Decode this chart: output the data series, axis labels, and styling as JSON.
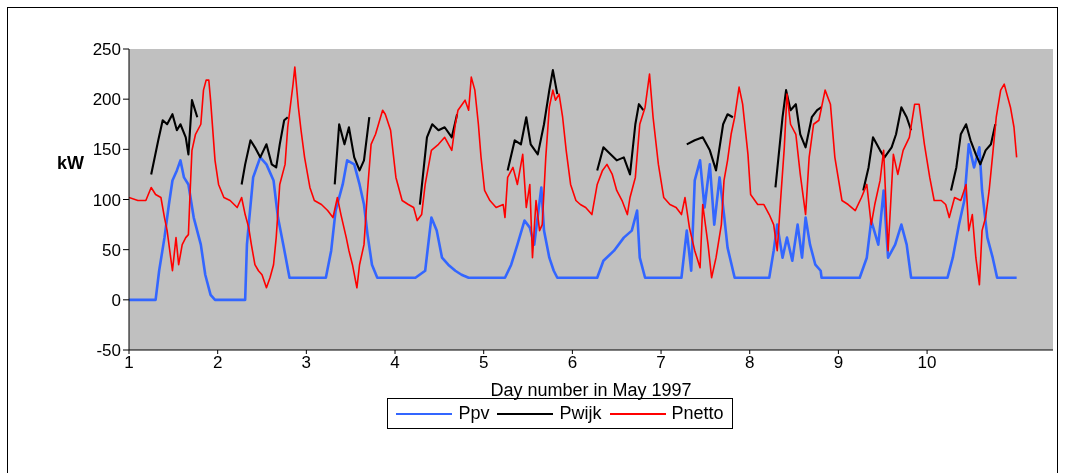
{
  "chart_data": {
    "type": "line",
    "xlabel": "Day number in May 1997",
    "ylabel": "kW",
    "xlim": [
      1,
      11.42
    ],
    "xticks": [
      1,
      2,
      3,
      4,
      5,
      6,
      7,
      8,
      9,
      10
    ],
    "ylim": [
      -50,
      250
    ],
    "yticks": [
      -50,
      0,
      50,
      100,
      150,
      200,
      250
    ],
    "legend": "bottom",
    "marker": "none",
    "line_style": "solid",
    "series": [
      {
        "name": "Ppv",
        "color": "#3366ff",
        "x": [
          1.0,
          1.3,
          1.34,
          1.4,
          1.45,
          1.49,
          1.54,
          1.58,
          1.62,
          1.67,
          1.73,
          1.81,
          1.86,
          1.92,
          1.97,
          2.31,
          2.33,
          2.35,
          2.4,
          2.48,
          2.55,
          2.63,
          2.68,
          2.74,
          2.81,
          3.22,
          3.28,
          3.33,
          3.41,
          3.46,
          3.54,
          3.6,
          3.65,
          3.69,
          3.74,
          3.8,
          4.23,
          4.34,
          4.41,
          4.47,
          4.53,
          4.6,
          4.68,
          4.75,
          4.83,
          5.24,
          5.31,
          5.38,
          5.46,
          5.52,
          5.57,
          5.65,
          5.68,
          5.74,
          5.79,
          5.83,
          6.28,
          6.35,
          6.47,
          6.58,
          6.67,
          6.73,
          6.76,
          6.82,
          7.23,
          7.29,
          7.34,
          7.38,
          7.44,
          7.49,
          7.55,
          7.6,
          7.66,
          7.71,
          7.75,
          7.83,
          8.22,
          8.27,
          8.31,
          8.37,
          8.42,
          8.48,
          8.54,
          8.59,
          8.63,
          8.68,
          8.74,
          8.8,
          8.81,
          9.24,
          9.32,
          9.37,
          9.45,
          9.51,
          9.56,
          9.64,
          9.71,
          9.77,
          9.82,
          10.23,
          10.29,
          10.36,
          10.42,
          10.47,
          10.53,
          10.59,
          10.62,
          10.68,
          10.74,
          10.79,
          11.01
        ],
        "values": [
          0,
          0,
          29,
          62,
          95,
          119,
          129,
          139,
          122,
          115,
          82,
          55,
          25,
          5,
          0,
          0,
          55,
          75,
          122,
          142,
          135,
          119,
          82,
          55,
          22,
          22,
          49,
          89,
          115,
          139,
          135,
          115,
          95,
          65,
          35,
          22,
          22,
          29,
          82,
          69,
          42,
          35,
          29,
          25,
          22,
          22,
          35,
          55,
          79,
          72,
          55,
          112,
          69,
          42,
          29,
          22,
          22,
          39,
          49,
          62,
          69,
          89,
          42,
          22,
          22,
          69,
          29,
          119,
          139,
          92,
          135,
          75,
          122,
          85,
          52,
          22,
          22,
          49,
          75,
          42,
          62,
          39,
          75,
          42,
          82,
          55,
          35,
          29,
          22,
          22,
          42,
          79,
          55,
          109,
          42,
          55,
          75,
          55,
          22,
          22,
          42,
          75,
          99,
          155,
          132,
          152,
          109,
          62,
          42,
          22,
          22
        ]
      },
      {
        "name": "Pwijk",
        "color": "#000000",
        "x": [
          1.25,
          1.33,
          1.38,
          1.43,
          1.49,
          1.54,
          1.58,
          1.64,
          1.67,
          1.71,
          1.77,
          1.81,
          1.84,
          1.87,
          1.9,
          1.92,
          1.97,
          2.01,
          2.07,
          2.14,
          2.22,
          2.27,
          2.31,
          2.37,
          2.42,
          2.48,
          2.55,
          2.61,
          2.66,
          2.7,
          2.75,
          2.79,
          2.85,
          2.87,
          2.91,
          2.94,
          2.98,
          3.04,
          3.09,
          3.17,
          3.24,
          3.32,
          3.37,
          3.43,
          3.48,
          3.54,
          3.6,
          3.65,
          3.71,
          3.78,
          3.86,
          3.89,
          3.95,
          4.01,
          4.08,
          4.15,
          4.21,
          4.28,
          4.36,
          4.42,
          4.49,
          4.56,
          4.64,
          4.7,
          4.79,
          4.83,
          4.86,
          4.9,
          4.94,
          4.97,
          5.01,
          5.07,
          5.14,
          5.22,
          5.27,
          5.35,
          5.42,
          5.48,
          5.53,
          5.61,
          5.68,
          5.74,
          5.78,
          5.83,
          5.89,
          5.93,
          5.98,
          6.04,
          6.09,
          6.15,
          6.22,
          6.28,
          6.35,
          6.43,
          6.5,
          6.58,
          6.65,
          6.71,
          6.75,
          6.8,
          6.87,
          6.91,
          6.97,
          7.03,
          7.1,
          7.17,
          7.23,
          7.29,
          7.38,
          7.47,
          7.55,
          7.62,
          7.7,
          7.75,
          7.81,
          7.88,
          7.92,
          7.98,
          8.01,
          8.09,
          8.16,
          8.22,
          8.29,
          8.37,
          8.41,
          8.46,
          8.52,
          8.57,
          8.63,
          8.7,
          8.76,
          8.81,
          8.87,
          8.91,
          8.96,
          9.04,
          9.11,
          9.19,
          9.28,
          9.34,
          9.39,
          9.47,
          9.52,
          9.6,
          9.65,
          9.71,
          9.77,
          9.82,
          9.88,
          9.91,
          9.97,
          10.03,
          10.08,
          10.16,
          10.21,
          10.27,
          10.33,
          10.38,
          10.44,
          10.49,
          10.55,
          10.6,
          10.66,
          10.72,
          10.77
        ],
        "values": [
          125,
          159,
          179,
          175,
          185,
          169,
          175,
          162,
          145,
          199,
          182,
          null,
          null,
          null,
          null,
          null,
          null,
          null,
          null,
          null,
          null,
          115,
          135,
          159,
          152,
          142,
          155,
          135,
          132,
          155,
          179,
          182,
          null,
          null,
          null,
          null,
          null,
          null,
          null,
          null,
          null,
          115,
          175,
          155,
          172,
          142,
          129,
          139,
          182,
          null,
          null,
          null,
          null,
          null,
          null,
          null,
          null,
          95,
          162,
          175,
          169,
          172,
          162,
          185,
          null,
          null,
          null,
          null,
          null,
          null,
          null,
          null,
          null,
          null,
          129,
          159,
          155,
          182,
          155,
          145,
          175,
          209,
          229,
          205,
          null,
          null,
          null,
          null,
          null,
          null,
          null,
          129,
          152,
          145,
          139,
          142,
          125,
          175,
          195,
          189,
          null,
          null,
          null,
          null,
          null,
          null,
          null,
          155,
          159,
          162,
          149,
          129,
          175,
          185,
          182,
          null,
          null,
          null,
          null,
          null,
          null,
          null,
          112,
          182,
          209,
          189,
          195,
          165,
          152,
          182,
          189,
          192,
          null,
          null,
          null,
          null,
          null,
          null,
          109,
          132,
          162,
          149,
          142,
          152,
          165,
          192,
          182,
          169,
          null,
          null,
          null,
          null,
          null,
          null,
          null,
          109,
          132,
          165,
          175,
          159,
          145,
          135,
          149,
          155,
          175
        ]
      },
      {
        "name": "Pnetto",
        "color": "#ff0000",
        "x": [
          1.0,
          1.1,
          1.19,
          1.25,
          1.3,
          1.36,
          1.4,
          1.43,
          1.47,
          1.49,
          1.53,
          1.56,
          1.6,
          1.64,
          1.67,
          1.69,
          1.71,
          1.75,
          1.81,
          1.84,
          1.87,
          1.9,
          1.92,
          1.97,
          2.01,
          2.07,
          2.14,
          2.22,
          2.27,
          2.31,
          2.35,
          2.38,
          2.42,
          2.46,
          2.5,
          2.55,
          2.59,
          2.63,
          2.66,
          2.7,
          2.76,
          2.79,
          2.85,
          2.87,
          2.91,
          2.94,
          2.98,
          3.04,
          3.09,
          3.17,
          3.24,
          3.3,
          3.35,
          3.39,
          3.45,
          3.48,
          3.52,
          3.57,
          3.6,
          3.65,
          3.69,
          3.73,
          3.78,
          3.86,
          3.89,
          3.95,
          4.01,
          4.08,
          4.15,
          4.21,
          4.25,
          4.3,
          4.34,
          4.41,
          4.49,
          4.56,
          4.64,
          4.68,
          4.71,
          4.79,
          4.83,
          4.86,
          4.9,
          4.94,
          4.97,
          5.01,
          5.07,
          5.14,
          5.22,
          5.24,
          5.27,
          5.33,
          5.38,
          5.44,
          5.48,
          5.52,
          5.55,
          5.59,
          5.63,
          5.66,
          5.7,
          5.74,
          5.78,
          5.81,
          5.85,
          5.89,
          5.93,
          5.98,
          6.04,
          6.09,
          6.15,
          6.22,
          6.28,
          6.34,
          6.39,
          6.45,
          6.5,
          6.56,
          6.62,
          6.65,
          6.71,
          6.76,
          6.82,
          6.87,
          6.91,
          6.97,
          7.03,
          7.1,
          7.17,
          7.23,
          7.27,
          7.32,
          7.38,
          7.44,
          7.47,
          7.53,
          7.57,
          7.62,
          7.68,
          7.71,
          7.75,
          7.79,
          7.83,
          7.88,
          7.92,
          7.98,
          8.01,
          8.09,
          8.16,
          8.22,
          8.27,
          8.31,
          8.35,
          8.39,
          8.42,
          8.46,
          8.52,
          8.57,
          8.63,
          8.67,
          8.72,
          8.78,
          8.85,
          8.91,
          8.96,
          9.04,
          9.11,
          9.19,
          9.26,
          9.32,
          9.37,
          9.41,
          9.47,
          9.51,
          9.56,
          9.62,
          9.67,
          9.73,
          9.8,
          9.86,
          9.91,
          9.97,
          10.03,
          10.08,
          10.16,
          10.21,
          10.25,
          10.31,
          10.38,
          10.44,
          10.47,
          10.51,
          10.55,
          10.59,
          10.62,
          10.66,
          10.7,
          10.74,
          10.78,
          10.83,
          10.87,
          10.9,
          10.94,
          10.98,
          11.01
        ],
        "values": [
          102,
          99,
          99,
          112,
          105,
          102,
          82,
          69,
          42,
          29,
          62,
          35,
          55,
          62,
          65,
          109,
          149,
          165,
          175,
          209,
          219,
          219,
          199,
          139,
          115,
          102,
          99,
          92,
          102,
          85,
          72,
          55,
          35,
          29,
          25,
          12,
          22,
          35,
          62,
          115,
          135,
          172,
          215,
          232,
          192,
          169,
          142,
          112,
          99,
          95,
          89,
          82,
          102,
          85,
          62,
          49,
          35,
          12,
          35,
          55,
          109,
          155,
          165,
          189,
          185,
          169,
          122,
          99,
          95,
          92,
          79,
          85,
          115,
          149,
          155,
          162,
          149,
          175,
          189,
          199,
          189,
          222,
          209,
          175,
          142,
          109,
          99,
          92,
          95,
          82,
          122,
          132,
          115,
          145,
          92,
          115,
          42,
          99,
          69,
          75,
          142,
          192,
          209,
          199,
          205,
          182,
          149,
          115,
          99,
          95,
          92,
          85,
          115,
          129,
          135,
          125,
          109,
          99,
          85,
          102,
          122,
          175,
          192,
          225,
          182,
          135,
          102,
          95,
          92,
          85,
          102,
          72,
          49,
          32,
          95,
          55,
          22,
          42,
          75,
          119,
          139,
          165,
          182,
          212,
          195,
          145,
          105,
          95,
          95,
          85,
          75,
          49,
          102,
          152,
          205,
          175,
          165,
          125,
          85,
          142,
          175,
          179,
          209,
          195,
          142,
          99,
          95,
          89,
          102,
          115,
          75,
          95,
          119,
          149,
          49,
          145,
          125,
          149,
          162,
          195,
          195,
          155,
          122,
          99,
          99,
          95,
          82,
          102,
          99,
          115,
          69,
          85,
          42,
          15,
          69,
          82,
          109,
          145,
          182,
          209,
          215,
          205,
          192,
          172,
          142
        ]
      }
    ]
  }
}
